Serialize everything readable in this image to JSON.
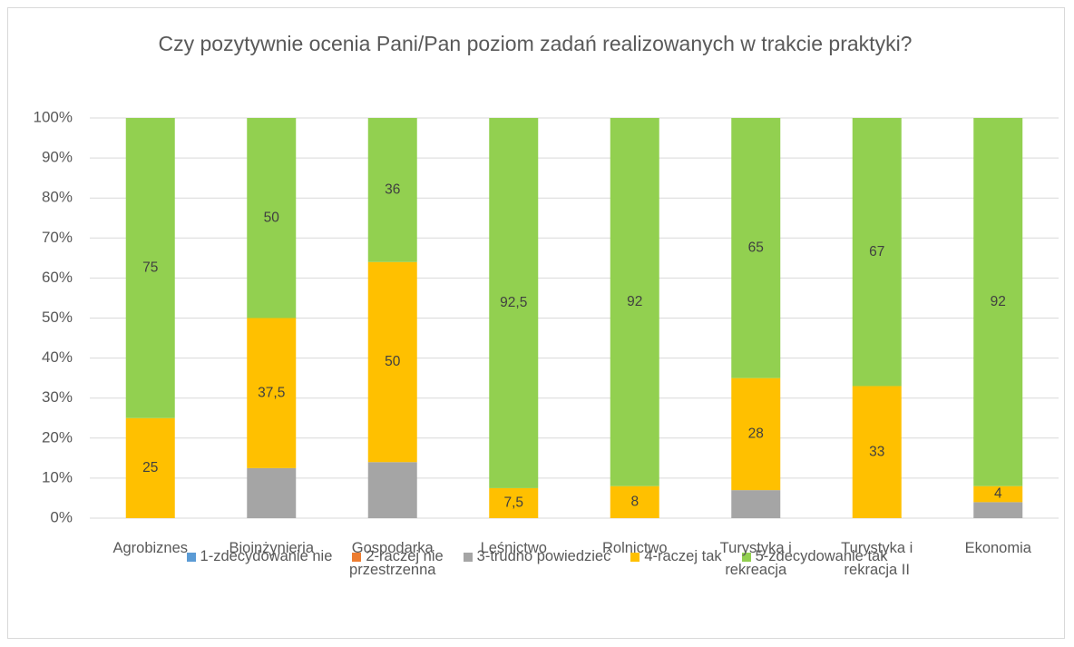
{
  "chart_data": {
    "type": "stacked_bar",
    "title": "Czy pozytywnie ocenia Pani/Pan poziom zadań realizowanych w trakcie praktyki?",
    "categories": [
      "Agrobiznes",
      "Bioinżynieria",
      "Gospodarka przestrzenna",
      "Leśnictwo",
      "Rolnictwo",
      "Turystyka i rekreacja",
      "Turystyka i rekracja II",
      "Ekonomia"
    ],
    "series": [
      {
        "name": "1-zdecydowanie nie",
        "color": "#5b9bd5",
        "values": [
          0,
          0,
          0,
          0,
          0,
          0,
          0,
          0
        ]
      },
      {
        "name": "2-raczej nie",
        "color": "#ed7d31",
        "values": [
          0,
          0,
          0,
          0,
          0,
          0,
          0,
          0
        ]
      },
      {
        "name": "3-trudno powiedzieć",
        "color": "#a5a5a5",
        "values": [
          0,
          12.5,
          14,
          0,
          0,
          7,
          0,
          4
        ]
      },
      {
        "name": "4-raczej tak",
        "color": "#ffc000",
        "values": [
          25,
          37.5,
          50,
          7.5,
          8,
          28,
          33,
          4
        ],
        "value_labels": [
          "25",
          "37,5",
          "50",
          "7,5",
          "8",
          "28",
          "33",
          "4"
        ]
      },
      {
        "name": "5-zdecydowanie tak",
        "color": "#92d050",
        "values": [
          75,
          50,
          36,
          92.5,
          92,
          65,
          67,
          92
        ],
        "value_labels": [
          "75",
          "50",
          "36",
          "92,5",
          "92",
          "65",
          "67",
          "92"
        ]
      }
    ],
    "ylim": [
      0,
      100
    ],
    "yticks": [
      {
        "value": 0,
        "label": "0%"
      },
      {
        "value": 10,
        "label": "10%"
      },
      {
        "value": 20,
        "label": "20%"
      },
      {
        "value": 30,
        "label": "30%"
      },
      {
        "value": 40,
        "label": "40%"
      },
      {
        "value": 50,
        "label": "50%"
      },
      {
        "value": 60,
        "label": "60%"
      },
      {
        "value": 70,
        "label": "70%"
      },
      {
        "value": 80,
        "label": "80%"
      },
      {
        "value": 90,
        "label": "90%"
      },
      {
        "value": 100,
        "label": "100%"
      }
    ],
    "grid": true,
    "legend": "bottom"
  }
}
